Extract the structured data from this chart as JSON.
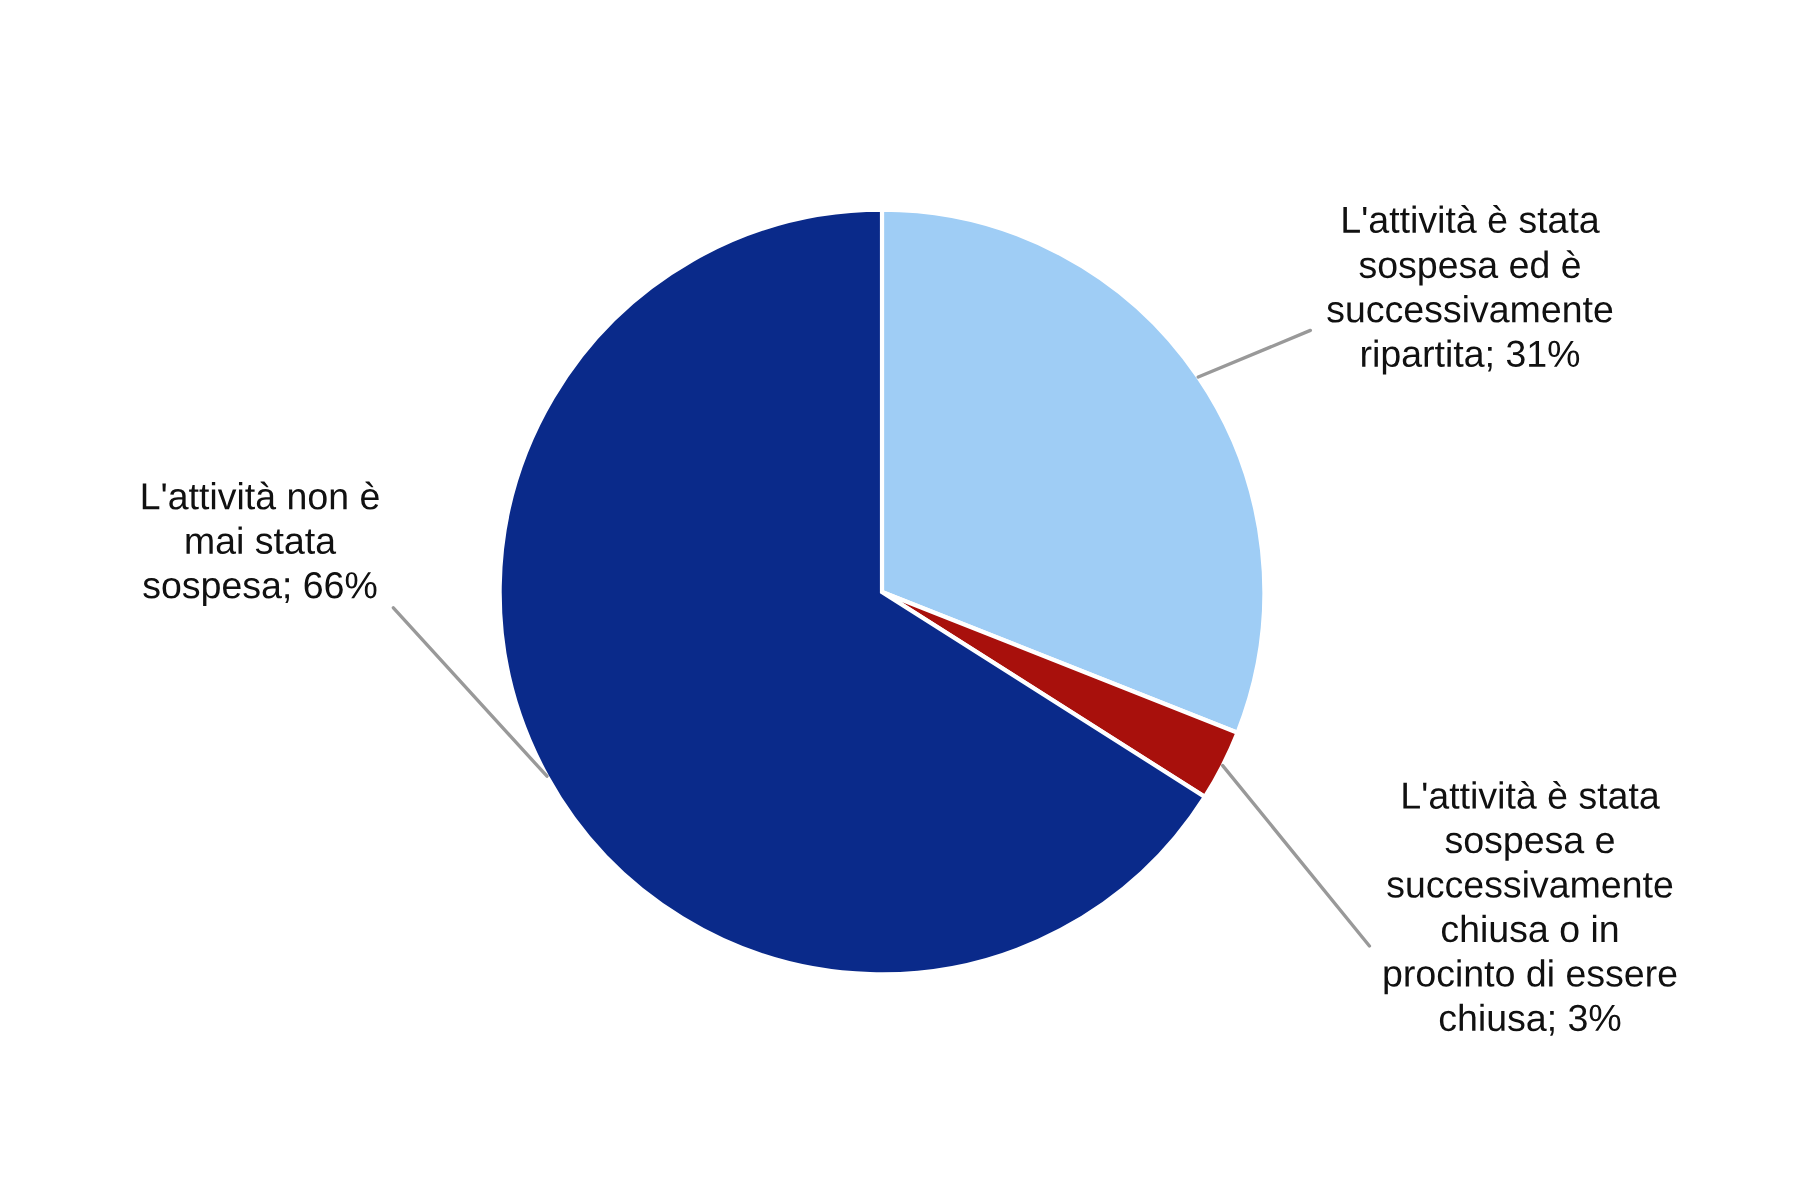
{
  "chart_data": {
    "type": "pie",
    "categories": [
      "L'attività è stata\nsospesa ed è\nsuccessivamente\nripartita",
      "L'attività è stata\nsospesa e\nsuccessivamente\nchiusa o in\nprocinto di essere\nchiusa",
      "L'attività non è\nmai stata\nsospesa"
    ],
    "values": [
      31,
      3,
      66
    ],
    "value_labels": [
      "31%",
      "3%",
      "66%"
    ],
    "colors": [
      "#9fcdf5",
      "#a8100c",
      "#0a2a8a"
    ]
  }
}
